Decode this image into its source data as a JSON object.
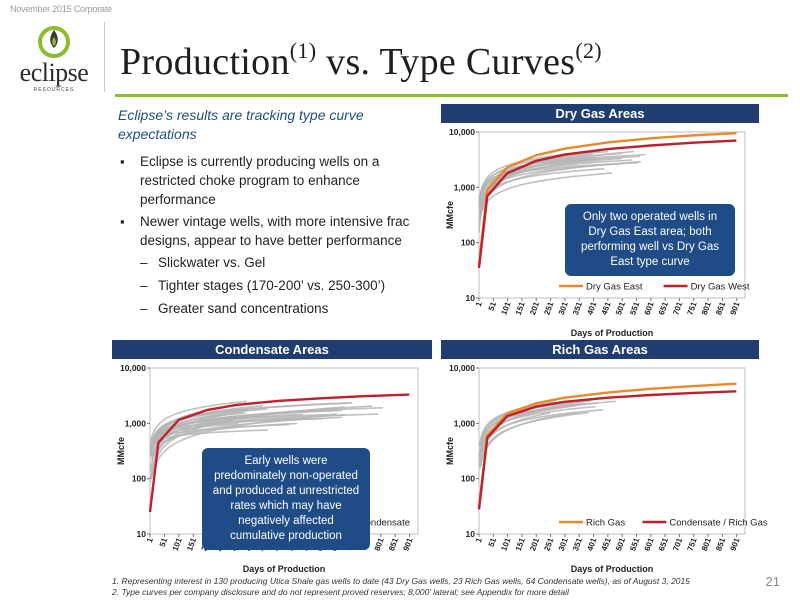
{
  "header": {
    "date_label": "November 2015 Corporate",
    "logo_text": "eclipse",
    "logo_sub": "RESOURCES",
    "title_main": "Production",
    "title_sup1": "(1)",
    "title_mid": " vs. Type Curves",
    "title_sup2": "(2)",
    "accent_color": "#8dbd2e"
  },
  "body": {
    "intro": "Eclipse’s results are tracking type curve expectations",
    "bullet1": "Eclipse is currently producing wells on a restricted choke program to enhance performance",
    "bullet2": "Newer vintage wells, with more intensive frac designs, appear to have better performance",
    "sub1": "Slickwater vs. Gel",
    "sub2": "Tighter stages (170-200’ vs. 250-300’)",
    "sub3": "Greater sand concentrations"
  },
  "callouts": {
    "dry": "Only two operated wells in Dry Gas East area; both performing well vs Dry Gas East type curve",
    "cond": "Early wells were predominately non-operated and produced at unrestricted rates which may have negatively affected cumulative production"
  },
  "footnotes": {
    "f1": "1.  Representing interest in 130 producing Utica Shale gas wells to date (43 Dry Gas wells, 23 Rich Gas wells, 64 Condensate wells), as of August 3, 2015",
    "f2": "2.  Type curves per company disclosure and do not represent proved reserves; 8,000’ lateral; see Appendix for more detail"
  },
  "page_number": "21",
  "chart_data": [
    {
      "id": "dry",
      "panel_title": "Dry Gas Areas",
      "type": "line",
      "xlabel": "Days of Production",
      "ylabel": "MMcfe",
      "y_log": true,
      "ylim": [
        10,
        10000
      ],
      "y_ticks": [
        "10",
        "100",
        "1,000",
        "10,000"
      ],
      "x_ticks": [
        "1",
        "51",
        "101",
        "151",
        "201",
        "251",
        "301",
        "351",
        "401",
        "451",
        "501",
        "551",
        "601",
        "651",
        "701",
        "751",
        "801",
        "851",
        "901"
      ],
      "xlim": [
        1,
        930
      ],
      "gray_wells": {
        "count": 18,
        "color": "#b5b5b5",
        "cum_start": [
          60,
          400
        ],
        "cum_end": [
          1600,
          4800
        ],
        "last_day": [
          350,
          600
        ]
      },
      "series": [
        {
          "name": "Dry Gas East",
          "color": "#e8892b",
          "x": [
            1,
            30,
            100,
            200,
            300,
            450,
            600,
            750,
            900
          ],
          "y": [
            40,
            900,
            2300,
            3800,
            5000,
            6500,
            7700,
            8700,
            9500
          ]
        },
        {
          "name": "Dry Gas West",
          "color": "#c0202e",
          "x": [
            1,
            30,
            100,
            200,
            300,
            450,
            600,
            750,
            900
          ],
          "y": [
            35,
            700,
            1800,
            3000,
            3900,
            4900,
            5700,
            6400,
            7000
          ]
        }
      ],
      "legend": "bottom"
    },
    {
      "id": "cond",
      "panel_title": "Condensate Areas",
      "type": "line",
      "xlabel": "Days of Production",
      "ylabel": "MMcfe",
      "y_log": true,
      "ylim": [
        10,
        10000
      ],
      "y_ticks": [
        "10",
        "100",
        "1,000",
        "10,000"
      ],
      "x_ticks": [
        "1",
        "51",
        "101",
        "151",
        "201",
        "251",
        "301",
        "351",
        "401",
        "451",
        "501",
        "551",
        "601",
        "651",
        "701",
        "751",
        "801",
        "851",
        "901"
      ],
      "xlim": [
        1,
        930
      ],
      "gray_wells": {
        "count": 26,
        "color": "#b5b5b5",
        "cum_start": [
          40,
          300
        ],
        "cum_end": [
          700,
          2600
        ],
        "last_day": [
          250,
          820
        ]
      },
      "series": [
        {
          "name": "Lean Condensate",
          "color": "#c0202e",
          "x": [
            1,
            30,
            100,
            200,
            300,
            450,
            600,
            750,
            900
          ],
          "y": [
            25,
            450,
            1150,
            1750,
            2150,
            2550,
            2850,
            3100,
            3300
          ]
        }
      ],
      "legend": "bottom-right"
    },
    {
      "id": "rich",
      "panel_title": "Rich Gas Areas",
      "type": "line",
      "xlabel": "Days of Production",
      "ylabel": "MMcfe",
      "y_log": true,
      "ylim": [
        10,
        10000
      ],
      "y_ticks": [
        "10",
        "100",
        "1,000",
        "10,000"
      ],
      "x_ticks": [
        "1",
        "51",
        "101",
        "151",
        "201",
        "251",
        "301",
        "351",
        "401",
        "451",
        "501",
        "551",
        "601",
        "651",
        "701",
        "751",
        "801",
        "851",
        "901"
      ],
      "xlim": [
        1,
        930
      ],
      "gray_wells": {
        "count": 14,
        "color": "#b5b5b5",
        "cum_start": [
          50,
          250
        ],
        "cum_end": [
          1400,
          3000
        ],
        "last_day": [
          250,
          480
        ]
      },
      "series": [
        {
          "name": "Rich Gas",
          "color": "#e8892b",
          "x": [
            1,
            30,
            100,
            200,
            300,
            450,
            600,
            750,
            900
          ],
          "y": [
            30,
            600,
            1500,
            2300,
            2900,
            3600,
            4200,
            4700,
            5200
          ]
        },
        {
          "name": "Condensate / Rich Gas",
          "color": "#c0202e",
          "x": [
            1,
            30,
            100,
            200,
            300,
            450,
            600,
            750,
            900
          ],
          "y": [
            28,
            550,
            1350,
            2000,
            2450,
            2900,
            3250,
            3550,
            3800
          ]
        }
      ],
      "legend": "bottom"
    }
  ]
}
